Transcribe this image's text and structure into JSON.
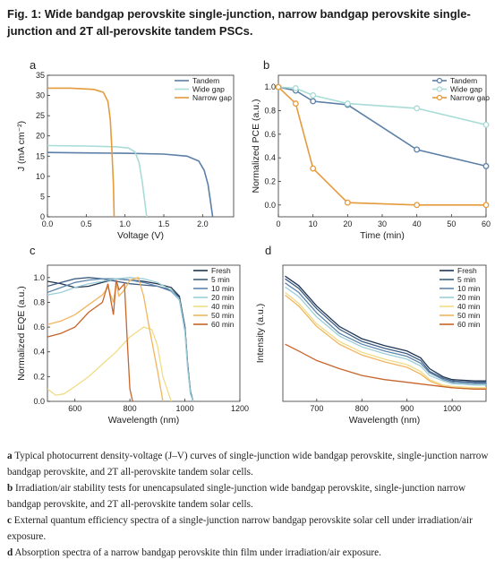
{
  "title": {
    "label": "Fig. 1:",
    "text": "Wide bandgap perovskite single-junction, narrow bandgap perovskite single-junction and 2T all-perovskite tandem PSCs."
  },
  "caption": [
    {
      "panel": "a",
      "text": "Typical photocurrent density-voltage (J–V) curves of single-junction wide bandgap perovskite, single-junction narrow bandgap perovskite, and 2T all-perovskite tandem solar cells."
    },
    {
      "panel": "b",
      "text": "Irradiation/air stability tests for unencapsulated single-junction wide bandgap perovskite, single-junction narrow bandgap perovskite, and 2T all-perovskite tandem solar cells."
    },
    {
      "panel": "c",
      "text": "External quantum efficiency spectra of a single-junction narrow bandgap perovskite solar cell under irradiation/air exposure."
    },
    {
      "panel": "d",
      "text": "Absorption spectra of a narrow bandgap perovskite thin film under irradiation/air exposure."
    }
  ],
  "chart_data": [
    {
      "panel": "a",
      "type": "line",
      "xlabel": "Voltage (V)",
      "ylabel": "J (mA cm⁻²)",
      "xlim": [
        0,
        2.4
      ],
      "ylim": [
        0,
        35
      ],
      "xticks": [
        "0.0",
        "0.5",
        "1.0",
        "1.5",
        "2.0"
      ],
      "yticks": [
        "0",
        "5",
        "10",
        "15",
        "20",
        "25",
        "30",
        "35"
      ],
      "legend": "top-right",
      "series": [
        {
          "name": "Tandem",
          "color": "#5b7fa6",
          "x": [
            0,
            0.5,
            1.0,
            1.5,
            1.8,
            1.95,
            2.02,
            2.07,
            2.1,
            2.13
          ],
          "y": [
            15.9,
            15.8,
            15.7,
            15.5,
            15.0,
            13.8,
            11.5,
            8.0,
            4.0,
            0
          ]
        },
        {
          "name": "Wide gap",
          "color": "#a8dcd6",
          "x": [
            0,
            0.5,
            0.9,
            1.05,
            1.13,
            1.18,
            1.22,
            1.25,
            1.28
          ],
          "y": [
            17.6,
            17.5,
            17.3,
            17.0,
            16.0,
            13.5,
            9.0,
            4.5,
            0
          ]
        },
        {
          "name": "Narrow gap",
          "color": "#e59a3c",
          "x": [
            0,
            0.3,
            0.6,
            0.72,
            0.78,
            0.81,
            0.83,
            0.85,
            0.86
          ],
          "y": [
            31.8,
            31.8,
            31.5,
            30.8,
            28.5,
            24.0,
            17.0,
            8.0,
            0
          ]
        }
      ]
    },
    {
      "panel": "b",
      "type": "line",
      "xlabel": "Time (min)",
      "ylabel": "Normalized PCE (a.u.)",
      "xlim": [
        0,
        60
      ],
      "ylim": [
        -0.1,
        1.1
      ],
      "xticks": [
        "0",
        "10",
        "20",
        "30",
        "40",
        "50",
        "60"
      ],
      "yticks": [
        "0.0",
        "0.2",
        "0.4",
        "0.6",
        "0.8",
        "1.0"
      ],
      "legend": "top-right",
      "series": [
        {
          "name": "Tandem",
          "color": "#5b7fa6",
          "x": [
            0,
            5,
            10,
            20,
            40,
            60
          ],
          "y": [
            1.0,
            0.97,
            0.88,
            0.85,
            0.47,
            0.33
          ]
        },
        {
          "name": "Wide gap",
          "color": "#a8dcd6",
          "x": [
            0,
            5,
            10,
            20,
            40,
            60
          ],
          "y": [
            1.0,
            0.99,
            0.93,
            0.86,
            0.82,
            0.68
          ]
        },
        {
          "name": "Narrow gap",
          "color": "#e59a3c",
          "x": [
            0,
            5,
            10,
            20,
            40,
            60
          ],
          "y": [
            1.0,
            0.86,
            0.31,
            0.02,
            0.0,
            0.0
          ]
        }
      ]
    },
    {
      "panel": "c",
      "type": "line",
      "xlabel": "Wavelength (nm)",
      "ylabel": "Normalized EQE (a.u.)",
      "xlim": [
        500,
        1200
      ],
      "ylim": [
        0,
        1.1
      ],
      "xticks": [
        "600",
        "800",
        "1000",
        "1200"
      ],
      "yticks": [
        "0.0",
        "0.2",
        "0.4",
        "0.6",
        "0.8",
        "1.0"
      ],
      "legend": "top-right",
      "series": [
        {
          "name": "Fresh",
          "color": "#1f3552",
          "x": [
            500,
            550,
            600,
            650,
            700,
            750,
            800,
            850,
            900,
            950,
            980,
            1000,
            1010,
            1020,
            1030
          ],
          "y": [
            0.97,
            0.95,
            0.92,
            0.93,
            0.96,
            0.99,
            0.98,
            0.97,
            0.95,
            0.92,
            0.85,
            0.6,
            0.3,
            0.08,
            0.0
          ]
        },
        {
          "name": "5 min",
          "color": "#3f5f84",
          "x": [
            500,
            550,
            600,
            650,
            700,
            750,
            800,
            850,
            900,
            950,
            980,
            1000,
            1010,
            1020,
            1030
          ],
          "y": [
            0.93,
            0.96,
            0.99,
            1.0,
            0.99,
            0.97,
            0.95,
            0.94,
            0.93,
            0.9,
            0.84,
            0.6,
            0.3,
            0.08,
            0.0
          ]
        },
        {
          "name": "10 min",
          "color": "#5f86ae",
          "x": [
            500,
            550,
            600,
            650,
            700,
            750,
            800,
            850,
            900,
            950,
            980,
            1000,
            1010,
            1020,
            1030
          ],
          "y": [
            0.88,
            0.92,
            0.96,
            0.98,
            0.99,
            0.99,
            0.98,
            0.96,
            0.93,
            0.89,
            0.82,
            0.58,
            0.28,
            0.07,
            0.0
          ]
        },
        {
          "name": "20 min",
          "color": "#9ccfd8",
          "x": [
            500,
            550,
            600,
            650,
            700,
            750,
            800,
            850,
            900,
            950,
            980,
            1000,
            1010,
            1020,
            1030
          ],
          "y": [
            0.86,
            0.88,
            0.92,
            0.95,
            0.97,
            0.99,
            1.0,
            0.99,
            0.96,
            0.9,
            0.82,
            0.56,
            0.27,
            0.06,
            0.0
          ]
        },
        {
          "name": "40 min",
          "color": "#f0dc86",
          "x": [
            500,
            530,
            560,
            600,
            650,
            700,
            750,
            800,
            850,
            880,
            900,
            920,
            950
          ],
          "y": [
            0.1,
            0.05,
            0.06,
            0.12,
            0.2,
            0.3,
            0.4,
            0.52,
            0.6,
            0.58,
            0.45,
            0.2,
            0.0
          ]
        },
        {
          "name": "50 min",
          "color": "#f2b55e",
          "x": [
            500,
            550,
            600,
            650,
            700,
            720,
            740,
            750,
            760,
            780,
            800,
            830,
            850,
            870,
            900,
            920
          ],
          "y": [
            0.62,
            0.65,
            0.7,
            0.78,
            0.86,
            0.92,
            0.8,
            0.95,
            0.85,
            0.9,
            0.98,
            1.0,
            0.85,
            0.6,
            0.25,
            0.0
          ]
        },
        {
          "name": "60 min",
          "color": "#c8652c",
          "x": [
            500,
            550,
            600,
            650,
            700,
            720,
            740,
            750,
            760,
            780,
            790,
            800,
            810
          ],
          "y": [
            0.52,
            0.55,
            0.6,
            0.72,
            0.8,
            0.95,
            0.7,
            0.98,
            0.9,
            0.95,
            0.5,
            0.1,
            0.0
          ]
        }
      ]
    },
    {
      "panel": "d",
      "type": "line",
      "xlabel": "Wavelength (nm)",
      "ylabel": "Intensity (a.u.)",
      "xlim": [
        625,
        1075
      ],
      "ylim": [
        0,
        1
      ],
      "xticks": [
        "700",
        "800",
        "900",
        "1000"
      ],
      "legend": "top-right",
      "series": [
        {
          "name": "Fresh",
          "color": "#1f3552",
          "x": [
            630,
            660,
            700,
            750,
            800,
            850,
            900,
            930,
            950,
            980,
            1000,
            1050,
            1075
          ],
          "y": [
            0.92,
            0.85,
            0.7,
            0.55,
            0.46,
            0.41,
            0.37,
            0.32,
            0.24,
            0.18,
            0.16,
            0.15,
            0.15
          ]
        },
        {
          "name": "5 min",
          "color": "#3f5f84",
          "x": [
            630,
            660,
            700,
            750,
            800,
            850,
            900,
            930,
            950,
            980,
            1000,
            1050,
            1075
          ],
          "y": [
            0.9,
            0.83,
            0.68,
            0.53,
            0.44,
            0.39,
            0.35,
            0.3,
            0.22,
            0.17,
            0.15,
            0.14,
            0.14
          ]
        },
        {
          "name": "10 min",
          "color": "#5f86ae",
          "x": [
            630,
            660,
            700,
            750,
            800,
            850,
            900,
            930,
            950,
            980,
            1000,
            1050,
            1075
          ],
          "y": [
            0.87,
            0.8,
            0.65,
            0.5,
            0.42,
            0.37,
            0.33,
            0.28,
            0.21,
            0.16,
            0.14,
            0.13,
            0.13
          ]
        },
        {
          "name": "20 min",
          "color": "#9ccfd8",
          "x": [
            630,
            660,
            700,
            750,
            800,
            850,
            900,
            930,
            950,
            980,
            1000,
            1050,
            1075
          ],
          "y": [
            0.84,
            0.77,
            0.62,
            0.48,
            0.4,
            0.35,
            0.31,
            0.26,
            0.19,
            0.15,
            0.13,
            0.12,
            0.12
          ]
        },
        {
          "name": "40 min",
          "color": "#f0dc86",
          "x": [
            630,
            660,
            700,
            750,
            800,
            850,
            900,
            930,
            950,
            980,
            1000,
            1050,
            1075
          ],
          "y": [
            0.8,
            0.72,
            0.57,
            0.44,
            0.36,
            0.31,
            0.27,
            0.22,
            0.16,
            0.12,
            0.11,
            0.1,
            0.1
          ]
        },
        {
          "name": "50 min",
          "color": "#f2b55e",
          "x": [
            630,
            660,
            700,
            750,
            800,
            850,
            900,
            930,
            950,
            980,
            1000,
            1050,
            1075
          ],
          "y": [
            0.78,
            0.7,
            0.55,
            0.42,
            0.34,
            0.29,
            0.25,
            0.2,
            0.15,
            0.11,
            0.1,
            0.09,
            0.09
          ]
        },
        {
          "name": "60 min",
          "color": "#c8652c",
          "x": [
            630,
            660,
            700,
            750,
            800,
            850,
            900,
            950,
            1000,
            1050,
            1075
          ],
          "y": [
            0.42,
            0.37,
            0.3,
            0.24,
            0.19,
            0.16,
            0.14,
            0.12,
            0.1,
            0.09,
            0.09
          ]
        }
      ]
    }
  ]
}
